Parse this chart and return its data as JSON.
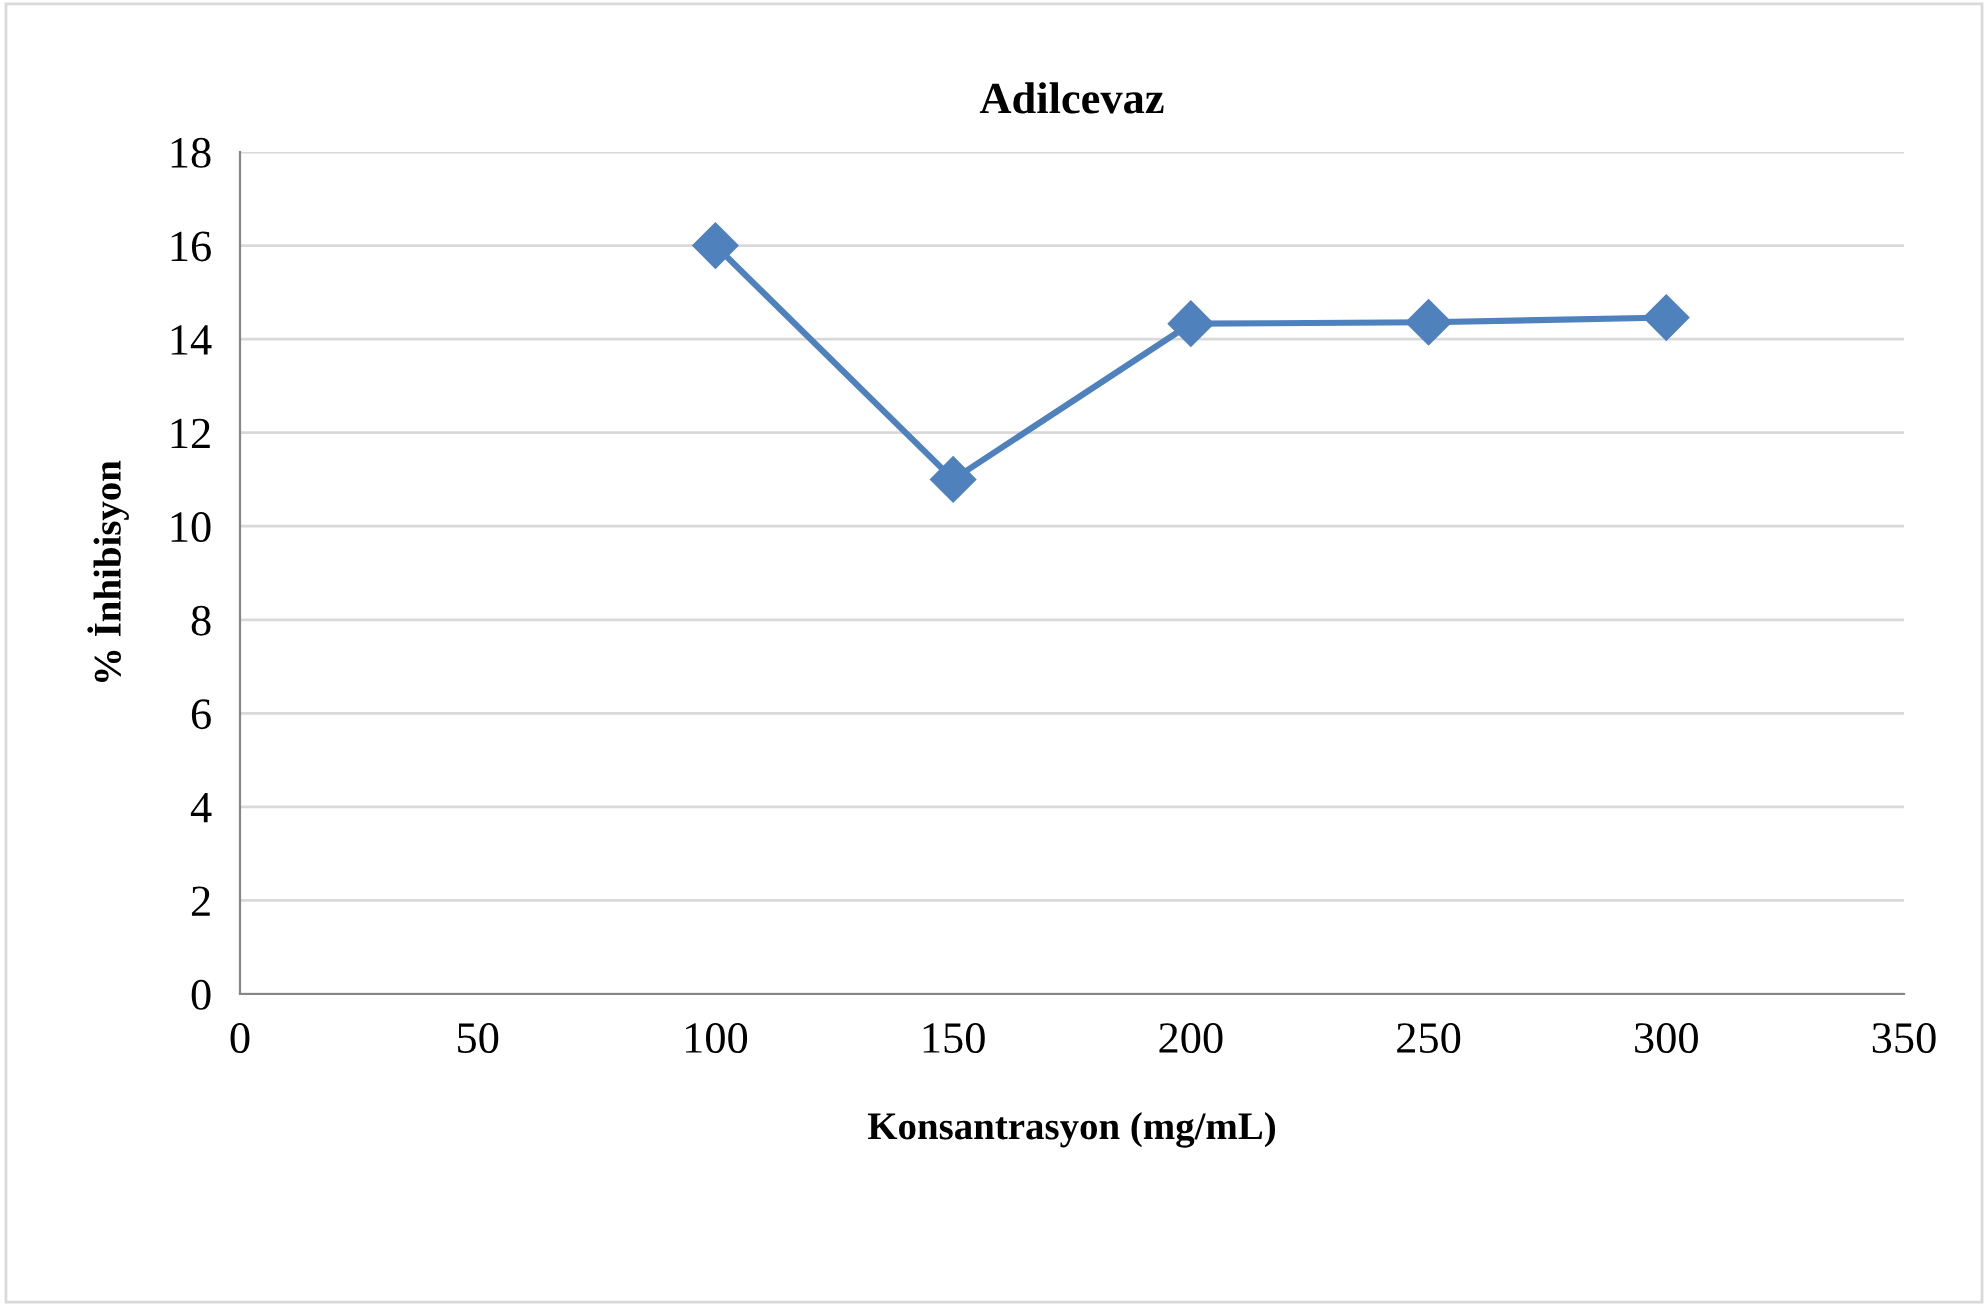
{
  "chart_data": {
    "type": "line",
    "title": "Adilcevaz",
    "xlabel": "Konsantrasyon (mg/mL)",
    "ylabel": "% İnhibisyon",
    "x": [
      100,
      150,
      200,
      250,
      300
    ],
    "series": [
      {
        "color": "#4f81bd",
        "values": [
          16,
          11,
          14.33,
          14.36,
          14.46
        ]
      }
    ],
    "xlim": [
      0,
      350
    ],
    "xticks": [
      0,
      50,
      100,
      150,
      200,
      250,
      300,
      350
    ],
    "ylim": [
      0,
      18
    ],
    "yticks": [
      0,
      2,
      4,
      6,
      8,
      10,
      12,
      14,
      16,
      18
    ],
    "grid": "y",
    "marker": "diamond",
    "line_style": "solid"
  }
}
